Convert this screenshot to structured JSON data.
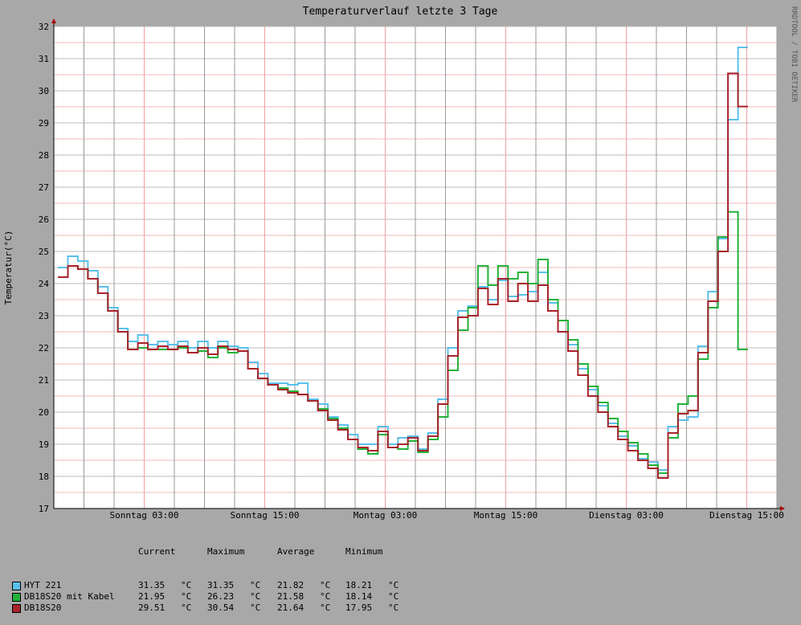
{
  "chart_data": {
    "type": "line",
    "title": "Temperaturverlauf letzte 3 Tage",
    "ylabel": "Temperatur(°C)",
    "watermark": "RRDTOOL / TOBI OETIKER",
    "ylim": [
      17,
      32
    ],
    "y_ticks": [
      17,
      18,
      19,
      20,
      21,
      22,
      23,
      24,
      25,
      26,
      27,
      28,
      29,
      30,
      31,
      32
    ],
    "x_range_hours": [
      0,
      72
    ],
    "x_ticks": [
      {
        "hour": 21,
        "label": "Sonntag 03:00"
      },
      {
        "hour": 33,
        "label": "Sonntag 15:00"
      },
      {
        "hour": 45,
        "label": "Montag 03:00"
      },
      {
        "hour": 57,
        "label": "Montag 15:00"
      },
      {
        "hour": 69,
        "label": "Dienstag 03:00"
      },
      {
        "hour": 81,
        "label": "Dienstag 15:00"
      }
    ],
    "grid": true,
    "legend_position": "bottom-left",
    "step_hours": 1,
    "x_start_hour": 9,
    "series": [
      {
        "name": "HYT 221",
        "color": "#5bc0eb",
        "values": [
          24.5,
          24.85,
          24.7,
          24.4,
          23.9,
          23.25,
          22.6,
          22.2,
          22.4,
          22.1,
          22.2,
          22.1,
          22.2,
          22.0,
          22.2,
          22.0,
          22.2,
          22.05,
          22.0,
          21.55,
          21.2,
          20.9,
          20.9,
          20.85,
          20.9,
          20.4,
          20.25,
          19.85,
          19.6,
          19.3,
          19.0,
          19.0,
          19.55,
          19.0,
          19.2,
          19.25,
          18.85,
          19.35,
          20.4,
          22.0,
          23.15,
          23.3,
          23.9,
          23.5,
          24.1,
          23.6,
          23.65,
          23.75,
          24.35,
          23.4,
          22.5,
          22.1,
          21.35,
          20.7,
          20.2,
          19.65,
          19.25,
          18.95,
          18.55,
          18.45,
          18.2,
          19.55,
          19.75,
          19.85,
          22.05,
          23.75,
          25.4,
          29.1,
          31.35
        ]
      },
      {
        "name": "DB18S20 mit Kabel",
        "color": "#22b23a",
        "values": [
          24.2,
          24.55,
          24.45,
          24.15,
          23.7,
          23.15,
          22.5,
          21.95,
          22.0,
          21.95,
          21.95,
          21.95,
          22.0,
          21.85,
          21.9,
          21.7,
          22.0,
          21.85,
          21.9,
          21.35,
          21.05,
          20.85,
          20.75,
          20.65,
          20.55,
          20.35,
          20.1,
          19.8,
          19.5,
          19.15,
          18.85,
          18.7,
          19.3,
          18.9,
          18.85,
          19.1,
          18.75,
          19.15,
          19.85,
          21.3,
          22.55,
          23.25,
          24.55,
          23.95,
          24.55,
          24.15,
          24.35,
          24.0,
          24.75,
          23.5,
          22.85,
          22.25,
          21.5,
          20.8,
          20.3,
          19.8,
          19.4,
          19.05,
          18.7,
          18.35,
          18.1,
          19.2,
          20.25,
          20.5,
          21.65,
          23.25,
          25.45,
          26.23,
          21.95
        ]
      },
      {
        "name": "DB18S20",
        "color": "#a8232b",
        "values": [
          24.2,
          24.55,
          24.45,
          24.15,
          23.7,
          23.15,
          22.5,
          21.95,
          22.15,
          21.95,
          22.05,
          21.95,
          22.05,
          21.85,
          22.0,
          21.8,
          22.05,
          21.95,
          21.9,
          21.35,
          21.05,
          20.85,
          20.7,
          20.6,
          20.55,
          20.35,
          20.05,
          19.75,
          19.45,
          19.15,
          18.9,
          18.8,
          19.4,
          18.9,
          19.0,
          19.2,
          18.8,
          19.25,
          20.25,
          21.75,
          22.95,
          23.0,
          23.85,
          23.35,
          24.15,
          23.45,
          24.0,
          23.45,
          23.95,
          23.15,
          22.5,
          21.9,
          21.15,
          20.5,
          20.0,
          19.55,
          19.15,
          18.8,
          18.5,
          18.25,
          17.95,
          19.35,
          19.95,
          20.05,
          21.85,
          23.45,
          25.0,
          30.54,
          29.51
        ]
      }
    ],
    "legend_table": {
      "headers": [
        "Current",
        "Maximum",
        "Average",
        "Minimum"
      ],
      "unit": "°C",
      "rows": [
        {
          "name": "HYT 221",
          "color": "#5bc0eb",
          "current": "31.35",
          "maximum": "31.35",
          "average": "21.82",
          "minimum": "18.21"
        },
        {
          "name": "DB18S20 mit Kabel",
          "color": "#22b23a",
          "current": "21.95",
          "maximum": "26.23",
          "average": "21.58",
          "minimum": "18.14"
        },
        {
          "name": "DB18S20",
          "color": "#a8232b",
          "current": "29.51",
          "maximum": "30.54",
          "average": "21.64",
          "minimum": "17.95"
        }
      ]
    }
  }
}
